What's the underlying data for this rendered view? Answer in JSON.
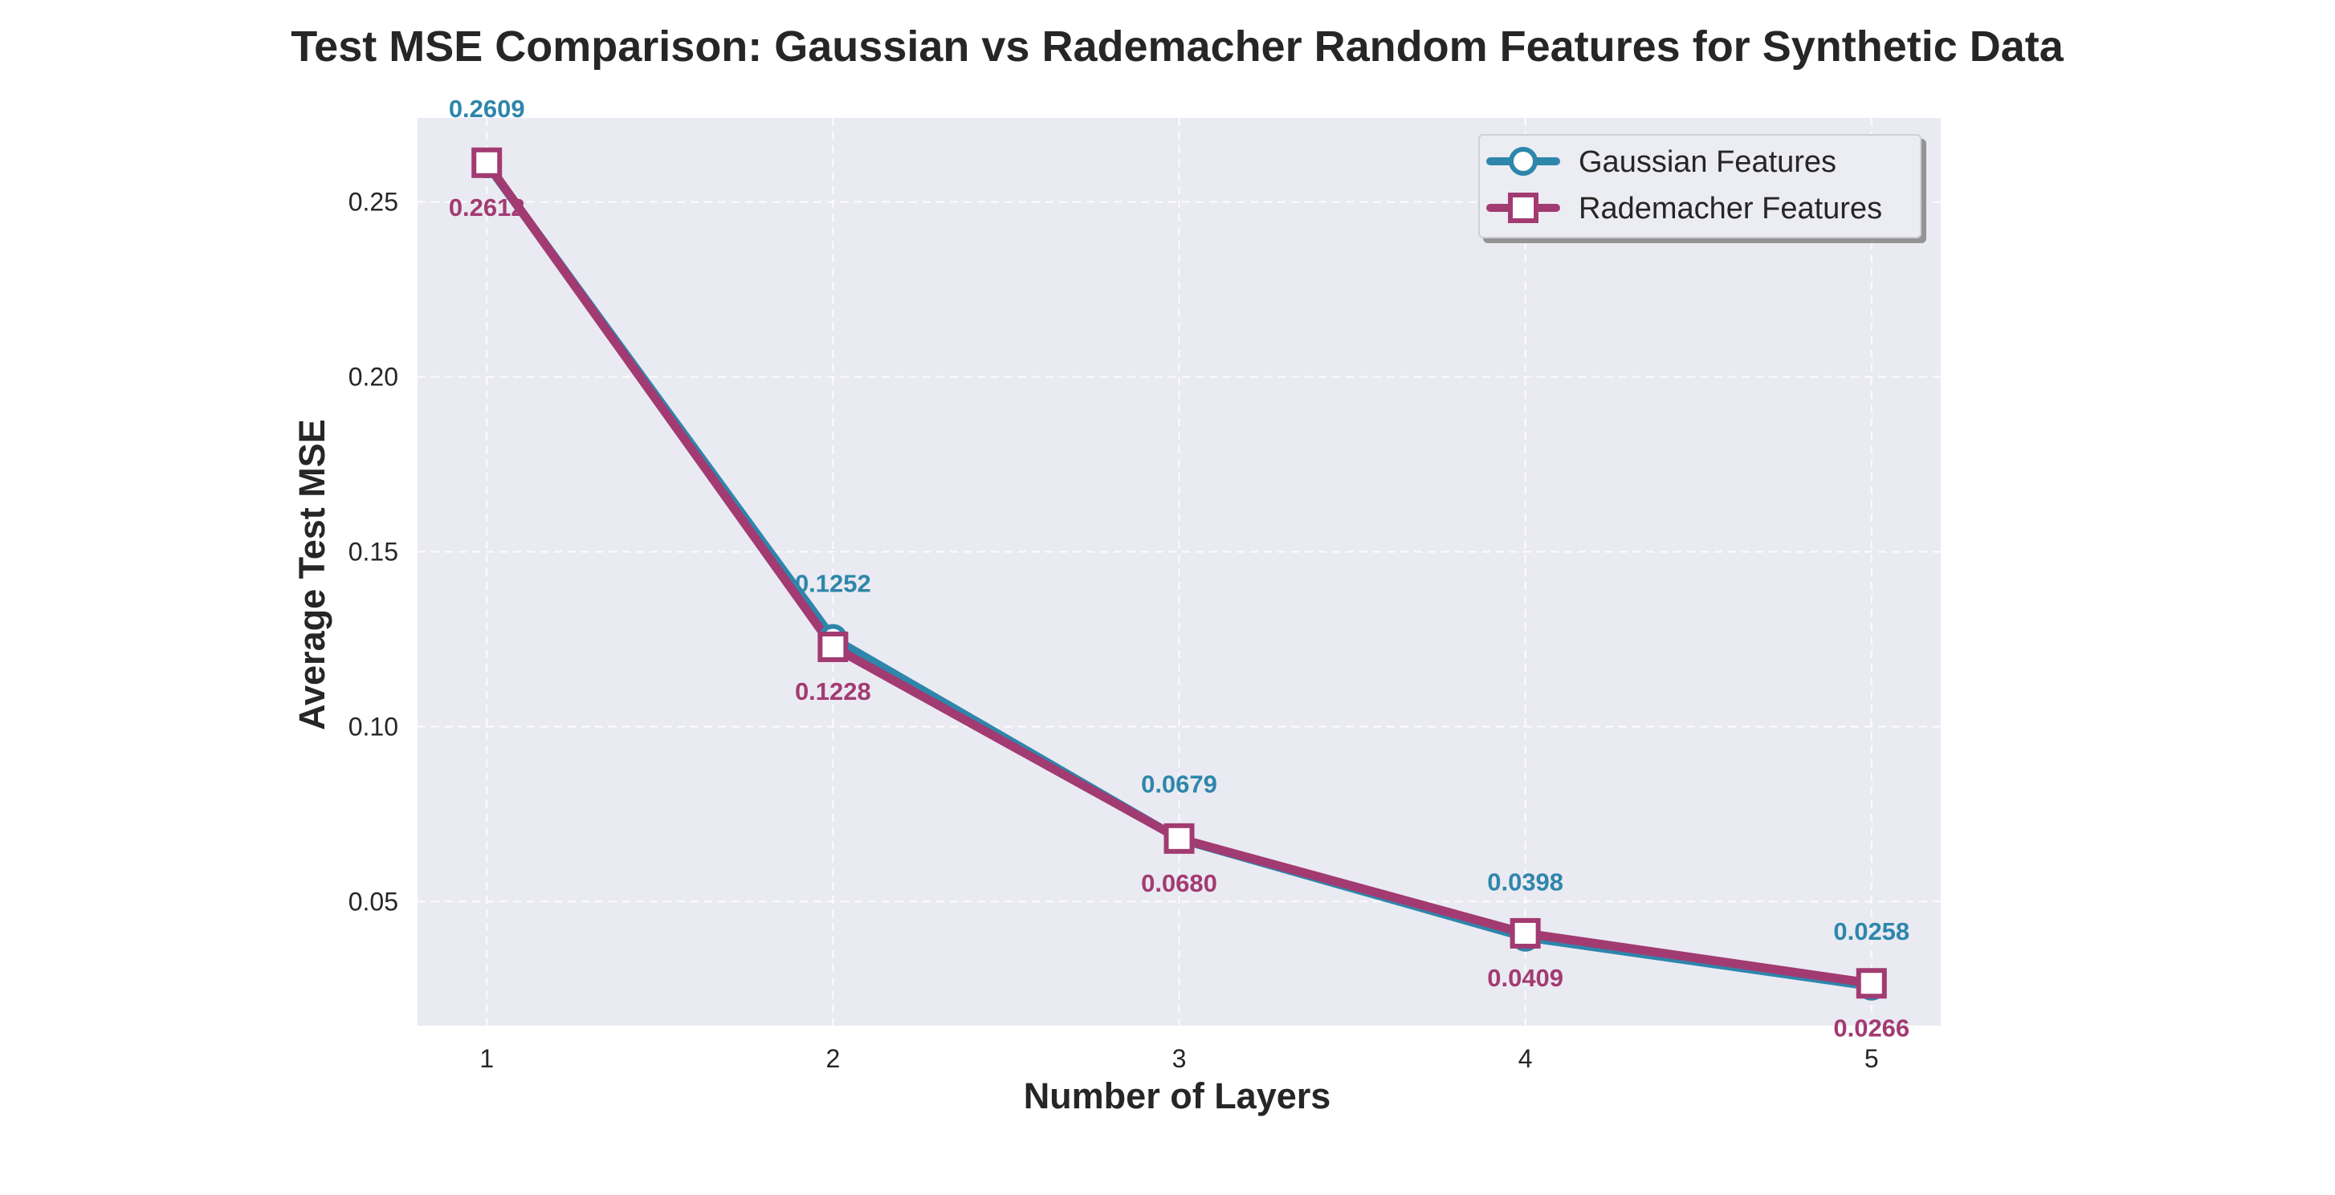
{
  "chart_data": {
    "type": "line",
    "title": "Test MSE Comparison: Gaussian vs Rademacher Random Features for Synthetic Data",
    "xlabel": "Number of Layers",
    "ylabel": "Average Test MSE",
    "x": [
      1,
      2,
      3,
      4,
      5
    ],
    "xlim": [
      0.8,
      5.2
    ],
    "ylim": [
      0.0145,
      0.274
    ],
    "xticks": [
      1,
      2,
      3,
      4,
      5
    ],
    "yticks": [
      0.05,
      0.1,
      0.15,
      0.2,
      0.25
    ],
    "ytick_labels": [
      "0.05",
      "0.10",
      "0.15",
      "0.20",
      "0.25"
    ],
    "grid": true,
    "legend_position": "top-right",
    "plot_background": "#eaeaf2",
    "series": [
      {
        "name": "Gaussian Features",
        "values": [
          0.2609,
          0.1252,
          0.0679,
          0.0398,
          0.0258
        ],
        "labels": [
          "0.2609",
          "0.1252",
          "0.0679",
          "0.0398",
          "0.0258"
        ],
        "color": "#2e86ab",
        "marker": "circle",
        "label_position": "above"
      },
      {
        "name": "Rademacher Features",
        "values": [
          0.2612,
          0.1228,
          0.068,
          0.0409,
          0.0266
        ],
        "labels": [
          "0.2612",
          "0.1228",
          "0.0680",
          "0.0409",
          "0.0266"
        ],
        "color": "#a23b72",
        "marker": "square",
        "label_position": "below"
      }
    ]
  }
}
